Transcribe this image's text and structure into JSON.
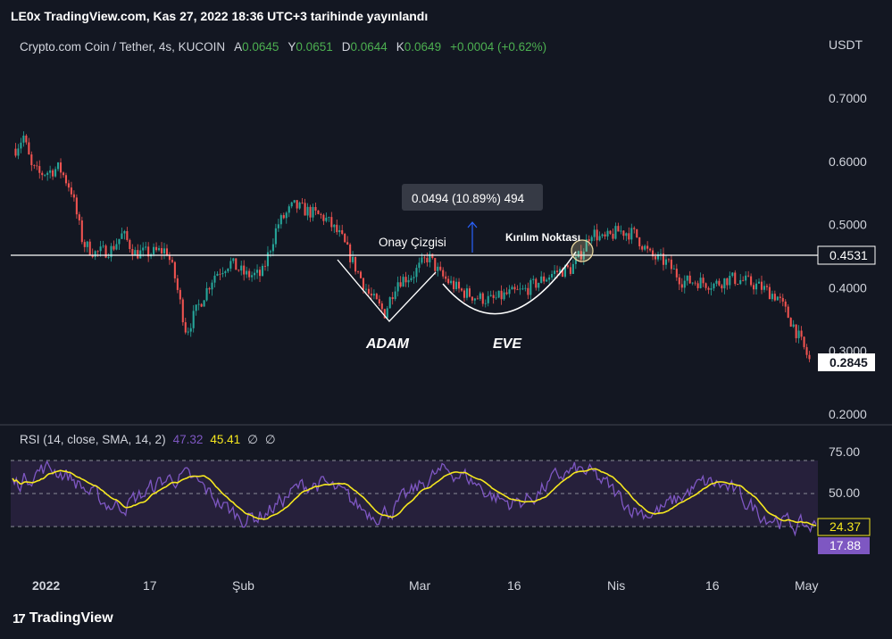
{
  "header": {
    "title": "LE0x TradingView.com, Kas 27, 2022 18:36 UTC+3 tarihinde yayınlandı"
  },
  "symbol": {
    "name": "Crypto.com Coin / Tether, 4s, KUCOIN",
    "open_label": "A",
    "open": "0.0645",
    "high_label": "Y",
    "high": "0.0651",
    "low_label": "D",
    "low": "0.0644",
    "close_label": "K",
    "close": "0.0649",
    "change": "+0.0004 (+0.62%)"
  },
  "rsi": {
    "label": "RSI (14, close, SMA, 14, 2)",
    "value": "47.32",
    "sma": "45.41",
    "extra1": "∅",
    "extra2": "∅",
    "current": "17.88",
    "current_sma": "24.37",
    "levels": [
      "75.00",
      "50.00"
    ]
  },
  "colors": {
    "background": "#131722",
    "up": "#26a69a",
    "down": "#ef5350",
    "rsi": "#7e57c2",
    "rsi_sma": "#f5e71f",
    "rsi_band": "#2a2240"
  },
  "annotations": {
    "onay": "Onay Çizgisi",
    "kirilim": "Kırılım Noktası",
    "adam": "ADAM",
    "eve": "EVE",
    "measure": "0.0494 (10.89%) 494"
  },
  "watermark": "TradingView",
  "chart_data": {
    "type": "candlestick",
    "quote_currency": "USDT",
    "y_ticks": [
      "0.7000",
      "0.6000",
      "0.5000",
      "0.4000",
      "0.3000",
      "0.2000"
    ],
    "ylim": [
      0.2,
      0.7
    ],
    "x_ticks": [
      "2022",
      "17",
      "Şub",
      "Mar",
      "16",
      "Nis",
      "16",
      "May"
    ],
    "horizontal_line": "0.4531",
    "last_price": "0.2845",
    "price_path": [
      [
        0,
        0.62
      ],
      [
        0.01,
        0.64
      ],
      [
        0.02,
        0.59
      ],
      [
        0.03,
        0.58
      ],
      [
        0.045,
        0.585
      ],
      [
        0.055,
        0.59
      ],
      [
        0.07,
        0.555
      ],
      [
        0.085,
        0.47
      ],
      [
        0.1,
        0.455
      ],
      [
        0.12,
        0.46
      ],
      [
        0.135,
        0.485
      ],
      [
        0.15,
        0.455
      ],
      [
        0.17,
        0.455
      ],
      [
        0.19,
        0.46
      ],
      [
        0.2,
        0.42
      ],
      [
        0.215,
        0.33
      ],
      [
        0.23,
        0.37
      ],
      [
        0.25,
        0.42
      ],
      [
        0.27,
        0.44
      ],
      [
        0.29,
        0.42
      ],
      [
        0.31,
        0.42
      ],
      [
        0.33,
        0.5
      ],
      [
        0.35,
        0.53
      ],
      [
        0.37,
        0.52
      ],
      [
        0.39,
        0.51
      ],
      [
        0.41,
        0.48
      ],
      [
        0.425,
        0.44
      ],
      [
        0.445,
        0.39
      ],
      [
        0.465,
        0.36
      ],
      [
        0.48,
        0.41
      ],
      [
        0.5,
        0.42
      ],
      [
        0.52,
        0.45
      ],
      [
        0.535,
        0.42
      ],
      [
        0.56,
        0.395
      ],
      [
        0.58,
        0.385
      ],
      [
        0.6,
        0.38
      ],
      [
        0.62,
        0.39
      ],
      [
        0.64,
        0.395
      ],
      [
        0.66,
        0.41
      ],
      [
        0.68,
        0.425
      ],
      [
        0.7,
        0.43
      ],
      [
        0.715,
        0.46
      ],
      [
        0.725,
        0.49
      ],
      [
        0.74,
        0.475
      ],
      [
        0.76,
        0.49
      ],
      [
        0.78,
        0.485
      ],
      [
        0.8,
        0.45
      ],
      [
        0.82,
        0.44
      ],
      [
        0.84,
        0.41
      ],
      [
        0.86,
        0.41
      ],
      [
        0.88,
        0.405
      ],
      [
        0.9,
        0.415
      ],
      [
        0.92,
        0.41
      ],
      [
        0.94,
        0.4
      ],
      [
        0.96,
        0.385
      ],
      [
        0.98,
        0.34
      ],
      [
        1,
        0.285
      ]
    ]
  }
}
